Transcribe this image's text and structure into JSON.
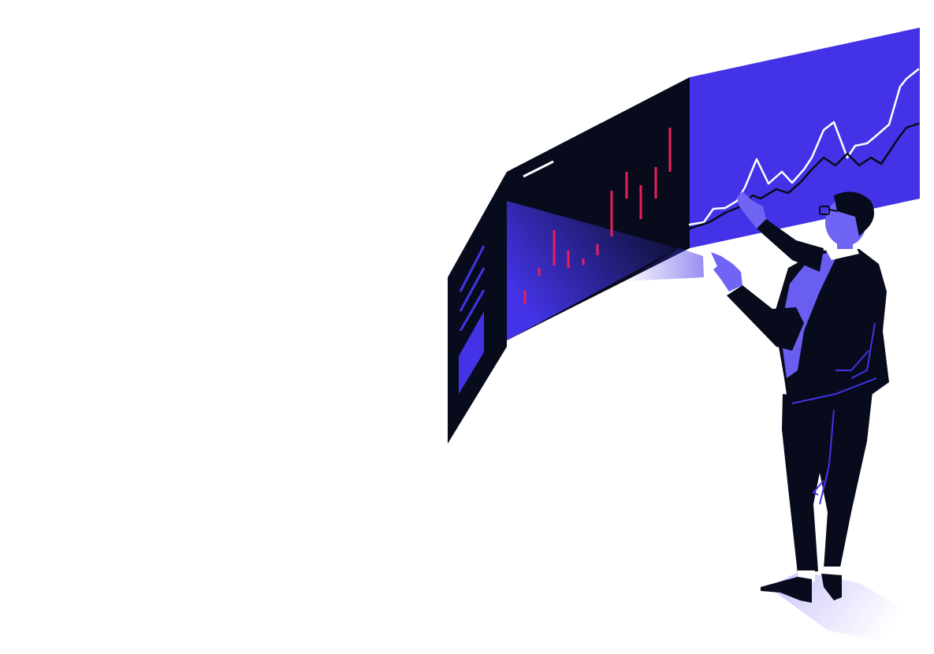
{
  "scene": {
    "subject": "businessman-analyzing-market-charts",
    "icons": [
      "candlestick-chart-icon",
      "line-chart-icon",
      "person-icon"
    ]
  },
  "colors": {
    "background": "#ffffff",
    "panel_dark": "#070b1c",
    "accent_blue": "#4433e6",
    "accent_light": "#6a5ef2",
    "candle_red": "#e8205a",
    "line_white": "#ffffff",
    "shadow": "#d9d6fb",
    "skin": "#6f64f4",
    "sock_white": "#ffffff"
  }
}
